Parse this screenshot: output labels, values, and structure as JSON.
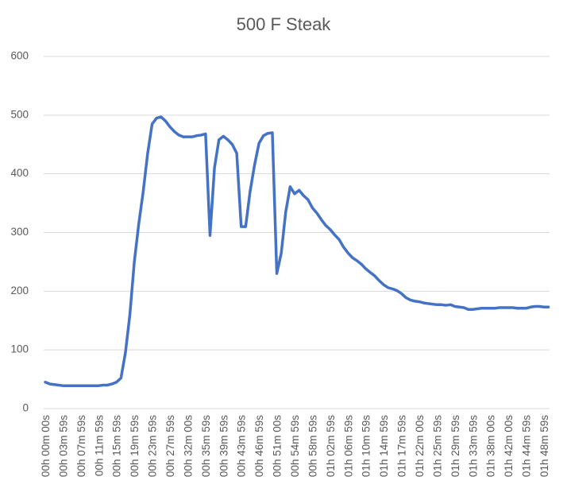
{
  "chart_data": {
    "type": "line",
    "title": "500 F Steak",
    "categories": [
      "00h 00m 00s",
      null,
      null,
      null,
      "00h 03m 59s",
      null,
      null,
      null,
      "00h 07m 59s",
      null,
      null,
      null,
      "00h 11m 59s",
      null,
      null,
      null,
      "00h 15m 59s",
      null,
      null,
      null,
      "00h 19m 59s",
      null,
      null,
      null,
      "00h 23m 59s",
      null,
      null,
      null,
      "00h 27m 59s",
      null,
      null,
      null,
      "00h 32m 00s",
      null,
      null,
      null,
      "00h 35m 59s",
      null,
      null,
      null,
      "00h 39m 59s",
      null,
      null,
      null,
      "00h 43m 59s",
      null,
      null,
      null,
      "00h 46m 59s",
      null,
      null,
      null,
      "00h 51m 00s",
      null,
      null,
      null,
      "00h 54m 59s",
      null,
      null,
      null,
      "00h 58m 59s",
      null,
      null,
      null,
      "01h 02m 59s",
      null,
      null,
      null,
      "01h 06m 59s",
      null,
      null,
      null,
      "01h 10m 59s",
      null,
      null,
      null,
      "01h 14m 59s",
      null,
      null,
      null,
      "01h 17m 59s",
      null,
      null,
      null,
      "01h 22m 00s",
      null,
      null,
      null,
      "01h 25m 59s",
      null,
      null,
      null,
      "01h 29m 59s",
      null,
      null,
      null,
      "01h 33m 59s",
      null,
      null,
      null,
      "01h 38m 00s",
      null,
      null,
      null,
      "01h 42m 00s",
      null,
      null,
      null,
      "01h 44m 59s",
      null,
      null,
      null,
      "01h 48m 59s",
      null
    ],
    "values": [
      45,
      42,
      41,
      40,
      39,
      39,
      39,
      39,
      39,
      39,
      39,
      39,
      39,
      40,
      40,
      42,
      45,
      52,
      95,
      160,
      250,
      315,
      370,
      435,
      485,
      495,
      497,
      490,
      480,
      472,
      466,
      463,
      463,
      463,
      465,
      466,
      468,
      295,
      410,
      458,
      464,
      458,
      450,
      435,
      310,
      310,
      370,
      415,
      452,
      465,
      469,
      470,
      230,
      265,
      335,
      378,
      366,
      372,
      363,
      356,
      342,
      333,
      322,
      312,
      305,
      296,
      288,
      275,
      265,
      257,
      252,
      246,
      238,
      232,
      226,
      218,
      211,
      206,
      204,
      201,
      196,
      189,
      185,
      183,
      182,
      180,
      179,
      178,
      177,
      177,
      176,
      177,
      174,
      173,
      172,
      169,
      169,
      170,
      171,
      171,
      171,
      171,
      172,
      172,
      172,
      172,
      171,
      171,
      171,
      173,
      174,
      174,
      173,
      173
    ],
    "color": "#4472c4",
    "ylim": [
      0,
      600
    ],
    "yticks": [
      0,
      100,
      200,
      300,
      400,
      500,
      600
    ],
    "grid": true
  }
}
